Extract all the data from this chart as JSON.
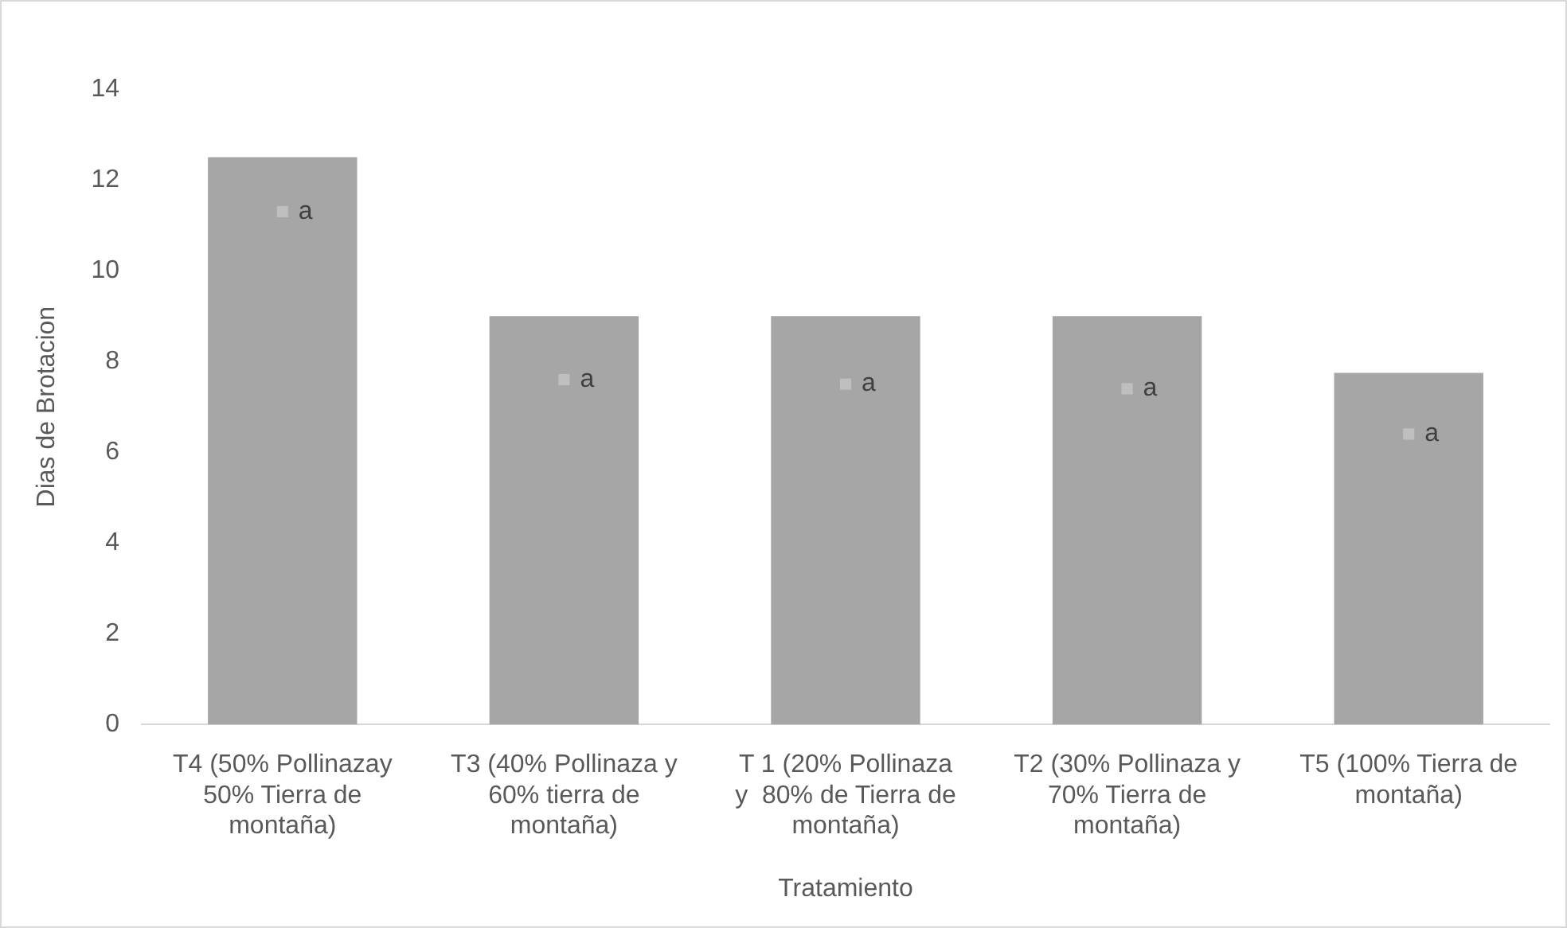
{
  "chart_data": {
    "type": "bar",
    "xlabel": "Tratamiento",
    "ylabel": "Dias de Brotacion",
    "categories": [
      "T4 (50% Pollinazay 50% Tierra de montaña)",
      "T3 (40% Pollinaza y 60% tierra de montaña)",
      "T 1 (20% Pollinaza y  80% de Tierra de montaña)",
      "T2 (30% Pollinaza y 70% Tierra de montaña)",
      "T5 (100% Tierra de montaña)"
    ],
    "series": [
      {
        "color": "#a6a6a6",
        "values": [
          12.5,
          9.0,
          9.0,
          9.0,
          7.75
        ]
      },
      {
        "type": "scatter",
        "marker": "square",
        "color": "#bfbfbf",
        "x": [
          "T4 (50% Pollinazay 50% Tierra de montaña)",
          "T3 (40% Pollinaza y 60% tierra de montaña)",
          "T 1 (20% Pollinaza y  80% de Tierra de montaña)",
          "T2 (30% Pollinaza y 70% Tierra de montaña)",
          "T5 (100% Tierra de montaña)"
        ],
        "values": [
          11.3,
          7.6,
          7.5,
          7.4,
          6.4
        ],
        "value_labels": [
          "a",
          "a",
          "a",
          "a",
          "a"
        ]
      }
    ],
    "ylim": [
      0,
      14
    ],
    "yticks": [
      0,
      2,
      4,
      6,
      8,
      10,
      12,
      14
    ],
    "grid": false,
    "legend": false
  }
}
